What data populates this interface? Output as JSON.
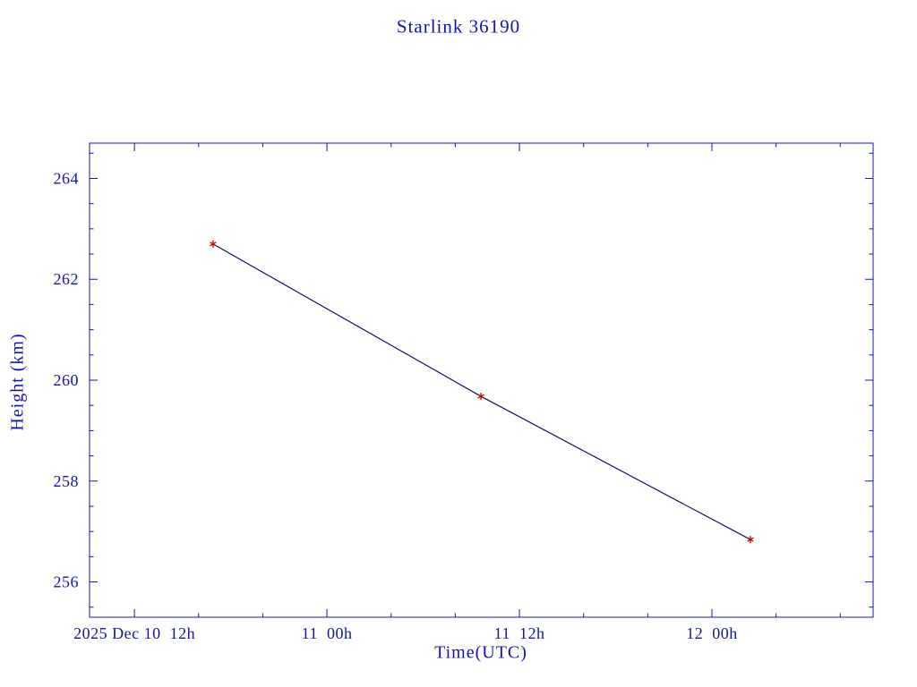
{
  "chart_data": {
    "type": "line",
    "title": "Starlink 36190",
    "xlabel": "Time(UTC)",
    "ylabel": "Height (km)",
    "x_unit": "hours since 2025 Dec 10 00h UTC",
    "xlim": [
      9.2,
      58.05
    ],
    "ylim": [
      255.3,
      264.7
    ],
    "grid": false,
    "legend": false,
    "x_major_ticks": [
      {
        "value": 12,
        "label": "2025 Dec 10  12h"
      },
      {
        "value": 24,
        "label": "11  00h"
      },
      {
        "value": 36,
        "label": "11  12h"
      },
      {
        "value": 48,
        "label": "12  00h"
      }
    ],
    "x_minor_step": 4,
    "y_major_ticks": [
      {
        "value": 256,
        "label": "256"
      },
      {
        "value": 258,
        "label": "258"
      },
      {
        "value": 260,
        "label": "260"
      },
      {
        "value": 262,
        "label": "262"
      },
      {
        "value": 264,
        "label": "264"
      }
    ],
    "y_minor_step": 0.5,
    "series": [
      {
        "name": "height",
        "x": [
          16.9,
          33.6,
          50.4
        ],
        "y": [
          262.7,
          259.68,
          256.84
        ],
        "line_color": "#13135e",
        "marker": "red-asterisk",
        "marker_color": "#cc0000"
      }
    ],
    "colors": {
      "axis": "#1414ad",
      "text": "#1414ad",
      "background": "#ffffff"
    }
  }
}
